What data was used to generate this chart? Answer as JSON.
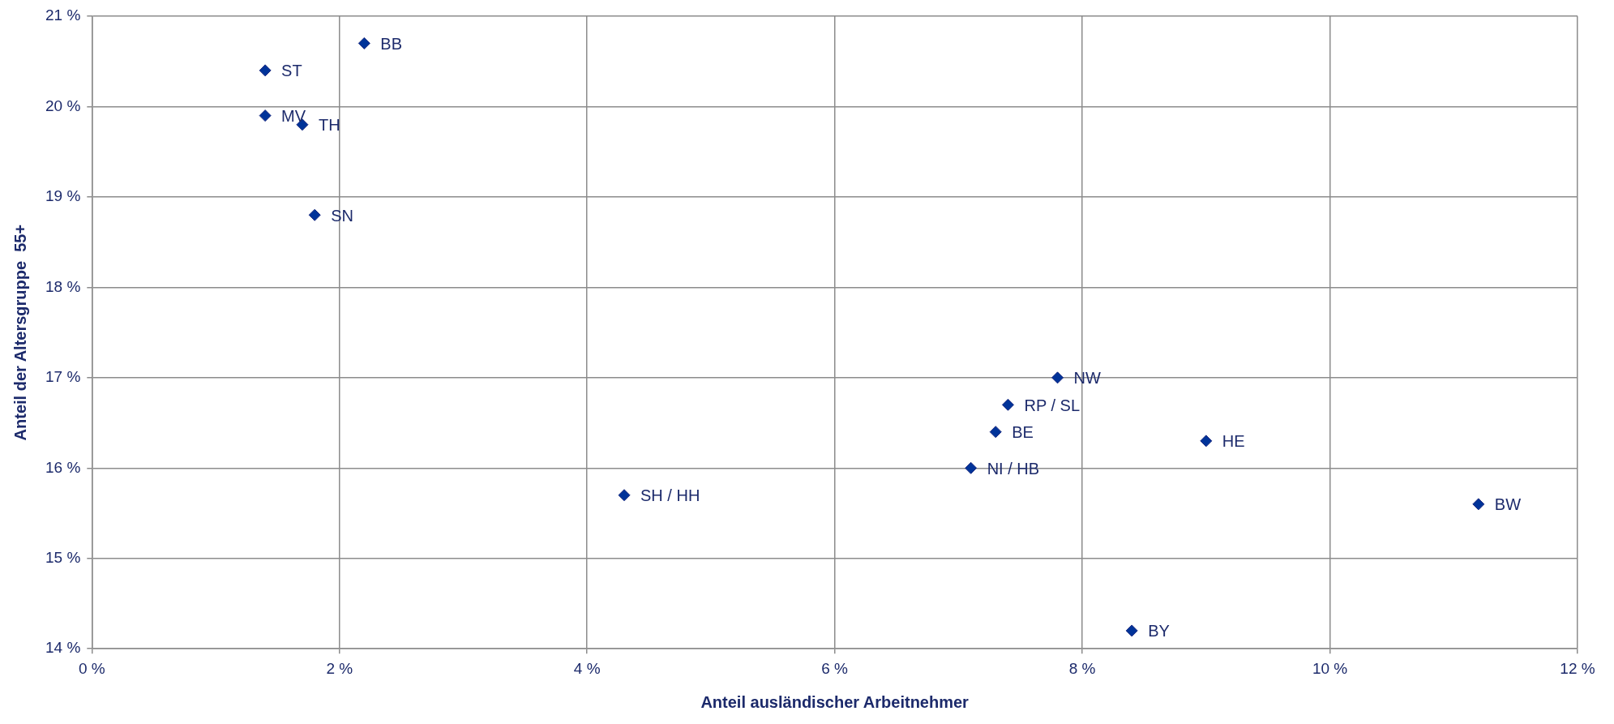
{
  "chart_data": {
    "type": "scatter",
    "xlabel": "Anteil ausländischer Arbeitnehmer",
    "ylabel": "Anteil der Altersgruppe  55+",
    "x": [
      2.2,
      1.4,
      1.4,
      1.7,
      1.8,
      7.8,
      7.4,
      7.3,
      9.0,
      7.1,
      4.3,
      11.2,
      8.4
    ],
    "values": [
      20.7,
      20.4,
      19.9,
      19.8,
      18.8,
      17.0,
      16.7,
      16.4,
      16.3,
      16.0,
      15.7,
      15.6,
      14.2
    ],
    "color": "#003399",
    "marker": "diamond",
    "grid": true,
    "legend": false,
    "xlim": [
      0,
      12
    ],
    "xticks": [
      {
        "value": 0,
        "label": "0 %"
      },
      {
        "value": 2,
        "label": "2 %"
      },
      {
        "value": 4,
        "label": "4 %"
      },
      {
        "value": 6,
        "label": "6 %"
      },
      {
        "value": 8,
        "label": "8 %"
      },
      {
        "value": 10,
        "label": "10 %"
      },
      {
        "value": 12,
        "label": "12 %"
      }
    ],
    "ylim": [
      14,
      21
    ],
    "yticks": [
      {
        "value": 14,
        "label": "14 %"
      },
      {
        "value": 15,
        "label": "15 %"
      },
      {
        "value": 16,
        "label": "16 %"
      },
      {
        "value": 17,
        "label": "17 %"
      },
      {
        "value": 18,
        "label": "18 %"
      },
      {
        "value": 19,
        "label": "19 %"
      },
      {
        "value": 20,
        "label": "20 %"
      },
      {
        "value": 21,
        "label": "21 %"
      }
    ],
    "annotations": [
      {
        "text": "BB",
        "x": 2.2,
        "y": 20.7
      },
      {
        "text": "ST",
        "x": 1.4,
        "y": 20.4
      },
      {
        "text": "MV",
        "x": 1.4,
        "y": 19.9
      },
      {
        "text": "TH",
        "x": 1.7,
        "y": 19.8
      },
      {
        "text": "SN",
        "x": 1.8,
        "y": 18.8
      },
      {
        "text": "NW",
        "x": 7.8,
        "y": 17.0
      },
      {
        "text": "RP / SL",
        "x": 7.4,
        "y": 16.7
      },
      {
        "text": "BE",
        "x": 7.3,
        "y": 16.4
      },
      {
        "text": "HE",
        "x": 9.0,
        "y": 16.3
      },
      {
        "text": "NI / HB",
        "x": 7.1,
        "y": 16.0
      },
      {
        "text": "SH / HH",
        "x": 4.3,
        "y": 15.7
      },
      {
        "text": "BW",
        "x": 11.2,
        "y": 15.6
      },
      {
        "text": "BY",
        "x": 8.4,
        "y": 14.2
      }
    ]
  }
}
